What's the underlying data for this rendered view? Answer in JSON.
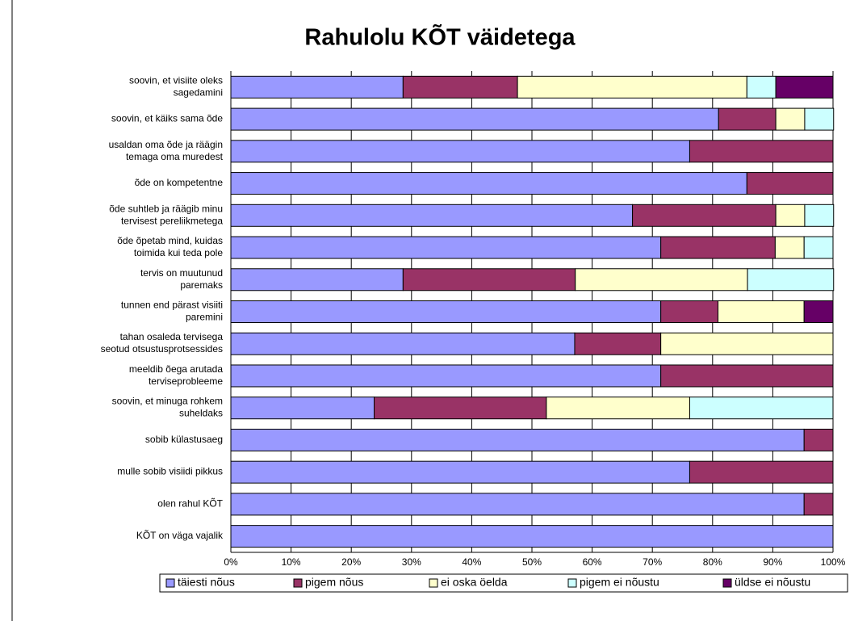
{
  "chart_data": {
    "type": "stacked-bar-horizontal",
    "title": "Rahulolu KÕT väidetega",
    "categories": [
      "soovin, et visiite oleks\nsagedamini",
      "soovin, et käiks sama õde",
      "usaldan oma õde ja räägin\ntemaga oma muredest",
      "õde on kompetentne",
      "õde suhtleb ja räägib minu\ntervisest pereliikmetega",
      "õde õpetab mind, kuidas\ntoimida kui teda pole",
      "tervis on muutunud\nparemaks",
      "tunnen end pärast visiiti\nparemini",
      "tahan osaleda tervisega\nseotud otsustusprotsessides",
      "meeldib õega arutada\nterviseprobleeme",
      "soovin, et minuga rohkem\nsuheldaks",
      "sobib külastusaeg",
      "mulle sobib visiidi pikkus",
      "olen rahul KÕT",
      "KÕT on väga vajalik"
    ],
    "series": [
      {
        "name": "täiesti nõus",
        "color": "#9999ff",
        "values": [
          28.6,
          81.0,
          76.2,
          85.7,
          66.7,
          71.4,
          28.6,
          71.4,
          57.1,
          71.4,
          23.8,
          95.2,
          76.2,
          95.2,
          100
        ]
      },
      {
        "name": "pigem nõus",
        "color": "#993366",
        "values": [
          19.0,
          9.5,
          23.8,
          14.3,
          23.8,
          19.0,
          28.6,
          9.5,
          14.3,
          28.6,
          28.6,
          4.8,
          23.8,
          4.8,
          0
        ]
      },
      {
        "name": "ei oska öelda",
        "color": "#ffffcc",
        "values": [
          38.1,
          4.8,
          0,
          0,
          4.8,
          4.8,
          28.6,
          14.3,
          28.6,
          0,
          23.8,
          0,
          0,
          0,
          0
        ]
      },
      {
        "name": "pigem ei nõustu",
        "color": "#ccffff",
        "values": [
          4.8,
          4.8,
          0,
          0,
          4.8,
          4.8,
          14.3,
          0,
          0,
          0,
          23.8,
          0,
          0,
          0,
          0
        ]
      },
      {
        "name": "üldse ei nõustu",
        "color": "#660066",
        "values": [
          9.5,
          0,
          0,
          0,
          0,
          0,
          0,
          4.8,
          0,
          0,
          0,
          0,
          0,
          0,
          0
        ]
      }
    ],
    "xlim": [
      0,
      100
    ],
    "xticks": [
      {
        "value": 0,
        "label": "0%"
      },
      {
        "value": 10,
        "label": "10%"
      },
      {
        "value": 20,
        "label": "20%"
      },
      {
        "value": 30,
        "label": "30%"
      },
      {
        "value": 40,
        "label": "40%"
      },
      {
        "value": 50,
        "label": "50%"
      },
      {
        "value": 60,
        "label": "60%"
      },
      {
        "value": 70,
        "label": "70%"
      },
      {
        "value": 80,
        "label": "80%"
      },
      {
        "value": 90,
        "label": "90%"
      },
      {
        "value": 100,
        "label": "100%"
      }
    ],
    "grid": true,
    "legend": "bottom"
  }
}
